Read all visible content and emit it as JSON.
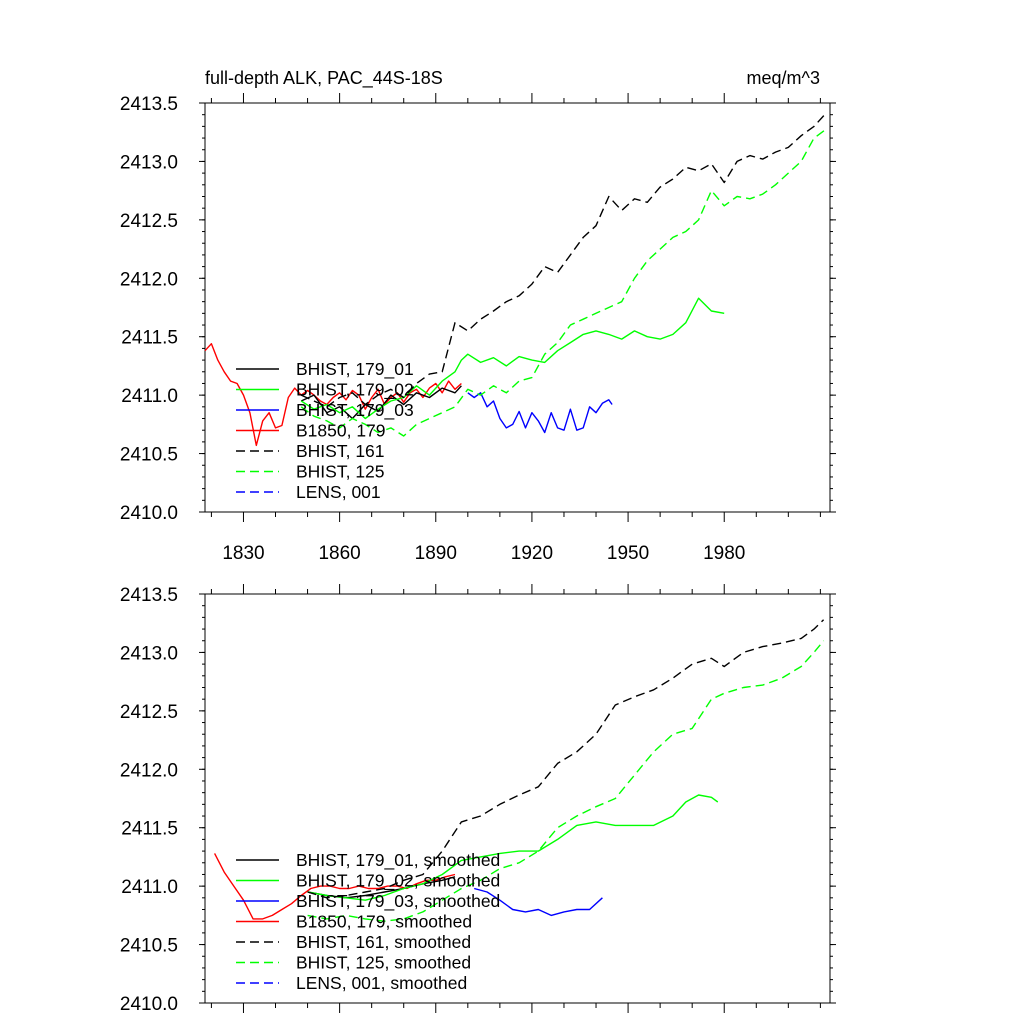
{
  "chart_data": [
    {
      "type": "line",
      "title": "full-depth ALK, PAC_44S-18S",
      "units": "meq/m^3",
      "xlim": [
        1818,
        2013
      ],
      "ylim": [
        2410.0,
        2413.5
      ],
      "xticks": [
        1830,
        1860,
        1890,
        1920,
        1950,
        1980
      ],
      "xtick_labels": [
        "1830",
        "1860",
        "1890",
        "1920",
        "1950",
        "1980"
      ],
      "yticks": [
        2410.0,
        2410.5,
        2411.0,
        2411.5,
        2412.0,
        2412.5,
        2413.0,
        2413.5
      ],
      "ytick_labels": [
        "2410.0",
        "2410.5",
        "2411.0",
        "2411.5",
        "2412.0",
        "2412.5",
        "2413.0",
        "2413.5"
      ],
      "legend_position": "bottom-left",
      "legend": [
        {
          "label": "BHIST, 179_01",
          "color": "#000000",
          "dash": "solid"
        },
        {
          "label": "BHIST, 179_02",
          "color": "#00ff00",
          "dash": "solid"
        },
        {
          "label": "BHIST, 179_03",
          "color": "#0000ff",
          "dash": "solid"
        },
        {
          "label": "B1850, 179",
          "color": "#ff0000",
          "dash": "solid"
        },
        {
          "label": "BHIST, 161",
          "color": "#000000",
          "dash": "dashed"
        },
        {
          "label": "BHIST, 125",
          "color": "#00ff00",
          "dash": "dashed"
        },
        {
          "label": "LENS, 001",
          "color": "#0000ff",
          "dash": "dashed"
        }
      ],
      "series": [
        {
          "name": "B1850, 179",
          "color": "#ff0000",
          "dash": "solid",
          "x": [
            1818,
            1820,
            1822,
            1824,
            1826,
            1828,
            1830,
            1832,
            1834,
            1836,
            1838,
            1840,
            1842,
            1844,
            1846,
            1848,
            1850,
            1852,
            1854,
            1856,
            1858,
            1860,
            1862,
            1864,
            1866,
            1868,
            1870,
            1872,
            1874,
            1876,
            1878,
            1880,
            1882,
            1884,
            1886,
            1888,
            1890,
            1892,
            1894,
            1896,
            1898
          ],
          "y": [
            2411.38,
            2411.44,
            2411.3,
            2411.2,
            2411.12,
            2411.1,
            2411.0,
            2410.85,
            2410.57,
            2410.78,
            2410.85,
            2410.72,
            2410.74,
            2410.98,
            2411.06,
            2411.0,
            2411.04,
            2411.0,
            2410.95,
            2410.92,
            2410.98,
            2411.02,
            2410.96,
            2411.04,
            2411.0,
            2410.88,
            2410.98,
            2411.05,
            2410.92,
            2410.98,
            2411.02,
            2410.94,
            2411.02,
            2411.05,
            2410.98,
            2411.06,
            2411.1,
            2411.02,
            2411.12,
            2411.05,
            2411.1
          ]
        },
        {
          "name": "BHIST, 179_01",
          "color": "#000000",
          "dash": "solid",
          "x": [
            1848,
            1852,
            1856,
            1860,
            1864,
            1868,
            1872,
            1876,
            1880,
            1884,
            1888,
            1892,
            1896,
            1898
          ],
          "y": [
            2410.95,
            2411.0,
            2410.85,
            2410.9,
            2410.8,
            2410.92,
            2410.86,
            2411.0,
            2410.92,
            2411.02,
            2410.98,
            2411.06,
            2411.02,
            2411.08
          ]
        },
        {
          "name": "BHIST, 179_02",
          "color": "#00ff00",
          "dash": "solid",
          "x": [
            1848,
            1852,
            1856,
            1860,
            1864,
            1868,
            1872,
            1876,
            1880,
            1884,
            1888,
            1892,
            1896,
            1898,
            1900,
            1904,
            1908,
            1912,
            1916,
            1920,
            1924,
            1928,
            1932,
            1936,
            1940,
            1944,
            1948,
            1952,
            1956,
            1960,
            1964,
            1968,
            1972,
            1976,
            1980
          ],
          "y": [
            2410.95,
            2410.88,
            2410.92,
            2410.85,
            2410.9,
            2410.8,
            2410.88,
            2410.95,
            2410.98,
            2411.08,
            2411.0,
            2411.12,
            2411.2,
            2411.3,
            2411.35,
            2411.28,
            2411.32,
            2411.25,
            2411.33,
            2411.3,
            2411.28,
            2411.38,
            2411.45,
            2411.52,
            2411.55,
            2411.52,
            2411.48,
            2411.55,
            2411.5,
            2411.48,
            2411.52,
            2411.62,
            2411.83,
            2411.72,
            2411.7
          ]
        },
        {
          "name": "BHIST, 179_03",
          "color": "#0000ff",
          "dash": "solid",
          "x": [
            1900,
            1902,
            1904,
            1906,
            1908,
            1910,
            1912,
            1914,
            1916,
            1918,
            1920,
            1922,
            1924,
            1926,
            1928,
            1930,
            1932,
            1934,
            1936,
            1938,
            1940,
            1942,
            1944,
            1945
          ],
          "y": [
            2411.02,
            2410.98,
            2411.02,
            2410.9,
            2410.95,
            2410.8,
            2410.72,
            2410.75,
            2410.86,
            2410.72,
            2410.85,
            2410.78,
            2410.68,
            2410.85,
            2410.72,
            2410.7,
            2410.88,
            2410.7,
            2410.72,
            2410.9,
            2410.85,
            2410.93,
            2410.96,
            2410.92
          ]
        },
        {
          "name": "BHIST, 161",
          "color": "#000000",
          "dash": "dashed",
          "x": [
            1848,
            1852,
            1856,
            1860,
            1864,
            1868,
            1872,
            1876,
            1880,
            1884,
            1888,
            1892,
            1896,
            1900,
            1904,
            1908,
            1912,
            1916,
            1920,
            1924,
            1928,
            1932,
            1936,
            1940,
            1944,
            1948,
            1952,
            1956,
            1960,
            1964,
            1968,
            1972,
            1976,
            1980,
            1984,
            1988,
            1992,
            1996,
            2000,
            2004,
            2008,
            2012
          ],
          "y": [
            2411.0,
            2410.95,
            2410.9,
            2410.98,
            2411.02,
            2410.92,
            2411.0,
            2411.05,
            2410.98,
            2411.1,
            2411.18,
            2411.2,
            2411.62,
            2411.55,
            2411.65,
            2411.72,
            2411.8,
            2411.85,
            2411.95,
            2412.1,
            2412.05,
            2412.2,
            2412.35,
            2412.45,
            2412.7,
            2412.58,
            2412.68,
            2412.65,
            2412.78,
            2412.85,
            2412.95,
            2412.92,
            2412.98,
            2412.82,
            2413.0,
            2413.05,
            2413.02,
            2413.08,
            2413.12,
            2413.22,
            2413.3,
            2413.42
          ]
        },
        {
          "name": "BHIST, 125",
          "color": "#00ff00",
          "dash": "dashed",
          "x": [
            1848,
            1852,
            1856,
            1860,
            1864,
            1868,
            1872,
            1876,
            1880,
            1884,
            1888,
            1892,
            1896,
            1900,
            1904,
            1908,
            1912,
            1916,
            1920,
            1924,
            1928,
            1932,
            1936,
            1940,
            1944,
            1948,
            1952,
            1956,
            1960,
            1964,
            1968,
            1972,
            1976,
            1980,
            1984,
            1988,
            1992,
            1996,
            2000,
            2004,
            2008,
            2012
          ],
          "y": [
            2410.9,
            2410.82,
            2410.78,
            2410.72,
            2410.8,
            2410.75,
            2410.68,
            2410.72,
            2410.65,
            2410.75,
            2410.8,
            2410.85,
            2410.9,
            2411.05,
            2411.0,
            2411.08,
            2411.02,
            2411.12,
            2411.15,
            2411.35,
            2411.45,
            2411.6,
            2411.65,
            2411.7,
            2411.75,
            2411.8,
            2412.0,
            2412.15,
            2412.25,
            2412.35,
            2412.4,
            2412.5,
            2412.75,
            2412.62,
            2412.7,
            2412.68,
            2412.72,
            2412.8,
            2412.9,
            2413.0,
            2413.2,
            2413.28
          ]
        }
      ]
    },
    {
      "type": "line",
      "title": "",
      "xlim": [
        1818,
        2013
      ],
      "ylim": [
        2410.0,
        2413.5
      ],
      "xticks": [
        1830,
        1860,
        1890,
        1920,
        1950,
        1980
      ],
      "yticks": [
        2410.0,
        2410.5,
        2411.0,
        2411.5,
        2412.0,
        2412.5,
        2413.0,
        2413.5
      ],
      "ytick_labels": [
        "2410.0",
        "2410.5",
        "2411.0",
        "2411.5",
        "2412.0",
        "2412.5",
        "2413.0",
        "2413.5"
      ],
      "legend_position": "bottom-left",
      "legend": [
        {
          "label": "BHIST, 179_01, smoothed",
          "color": "#000000",
          "dash": "solid"
        },
        {
          "label": "BHIST, 179_02, smoothed",
          "color": "#00ff00",
          "dash": "solid"
        },
        {
          "label": "BHIST, 179_03, smoothed",
          "color": "#0000ff",
          "dash": "solid"
        },
        {
          "label": "B1850, 179, smoothed",
          "color": "#ff0000",
          "dash": "solid"
        },
        {
          "label": "BHIST, 161, smoothed",
          "color": "#000000",
          "dash": "dashed"
        },
        {
          "label": "BHIST, 125, smoothed",
          "color": "#00ff00",
          "dash": "dashed"
        },
        {
          "label": "LENS, 001, smoothed",
          "color": "#0000ff",
          "dash": "dashed"
        }
      ],
      "series": [
        {
          "name": "B1850, 179, smoothed",
          "color": "#ff0000",
          "dash": "solid",
          "x": [
            1821,
            1824,
            1827,
            1830,
            1833,
            1836,
            1839,
            1842,
            1845,
            1848,
            1851,
            1854,
            1857,
            1860,
            1863,
            1866,
            1869,
            1872,
            1875,
            1878,
            1881,
            1884,
            1887,
            1890,
            1893,
            1896
          ],
          "y": [
            2411.28,
            2411.12,
            2411.0,
            2410.88,
            2410.72,
            2410.72,
            2410.75,
            2410.8,
            2410.85,
            2410.92,
            2410.98,
            2411.0,
            2411.0,
            2410.98,
            2410.98,
            2411.0,
            2410.98,
            2410.98,
            2411.0,
            2411.0,
            2410.98,
            2411.02,
            2411.05,
            2411.05,
            2411.08,
            2411.1
          ]
        },
        {
          "name": "BHIST, 179_01, smoothed",
          "color": "#000000",
          "dash": "solid",
          "x": [
            1850,
            1856,
            1862,
            1868,
            1874,
            1880,
            1886,
            1892,
            1896
          ],
          "y": [
            2410.95,
            2410.92,
            2410.9,
            2410.92,
            2410.95,
            2410.98,
            2411.02,
            2411.05,
            2411.08
          ]
        },
        {
          "name": "BHIST, 179_02, smoothed",
          "color": "#00ff00",
          "dash": "solid",
          "x": [
            1850,
            1856,
            1862,
            1868,
            1874,
            1880,
            1886,
            1892,
            1898,
            1904,
            1910,
            1916,
            1922,
            1928,
            1934,
            1940,
            1946,
            1952,
            1958,
            1964,
            1968,
            1972,
            1976,
            1978
          ],
          "y": [
            2410.95,
            2410.92,
            2410.9,
            2410.88,
            2410.92,
            2410.98,
            2411.02,
            2411.1,
            2411.22,
            2411.25,
            2411.28,
            2411.3,
            2411.3,
            2411.4,
            2411.52,
            2411.55,
            2411.52,
            2411.52,
            2411.52,
            2411.6,
            2411.72,
            2411.78,
            2411.76,
            2411.72
          ]
        },
        {
          "name": "BHIST, 179_03, smoothed",
          "color": "#0000ff",
          "dash": "solid",
          "x": [
            1902,
            1906,
            1910,
            1914,
            1918,
            1922,
            1926,
            1930,
            1934,
            1938,
            1942
          ],
          "y": [
            2410.98,
            2410.95,
            2410.88,
            2410.8,
            2410.78,
            2410.8,
            2410.75,
            2410.78,
            2410.8,
            2410.8,
            2410.9
          ]
        },
        {
          "name": "BHIST, 161, smoothed",
          "color": "#000000",
          "dash": "dashed",
          "x": [
            1850,
            1856,
            1862,
            1868,
            1874,
            1880,
            1886,
            1892,
            1898,
            1904,
            1910,
            1916,
            1922,
            1928,
            1934,
            1940,
            1946,
            1952,
            1958,
            1964,
            1970,
            1976,
            1980,
            1986,
            1992,
            1998,
            2004,
            2008,
            2011
          ],
          "y": [
            2410.95,
            2410.9,
            2410.92,
            2410.95,
            2410.98,
            2411.05,
            2411.1,
            2411.3,
            2411.55,
            2411.6,
            2411.7,
            2411.78,
            2411.85,
            2412.05,
            2412.15,
            2412.3,
            2412.55,
            2412.62,
            2412.68,
            2412.78,
            2412.9,
            2412.95,
            2412.88,
            2413.0,
            2413.05,
            2413.08,
            2413.12,
            2413.2,
            2413.28
          ]
        },
        {
          "name": "BHIST, 125, smoothed",
          "color": "#00ff00",
          "dash": "dashed",
          "x": [
            1850,
            1856,
            1862,
            1868,
            1874,
            1880,
            1886,
            1892,
            1898,
            1904,
            1910,
            1916,
            1922,
            1928,
            1934,
            1940,
            1946,
            1952,
            1958,
            1964,
            1970,
            1976,
            1980,
            1986,
            1992,
            1998,
            2004,
            2008,
            2011
          ],
          "y": [
            2410.75,
            2410.72,
            2410.75,
            2410.72,
            2410.7,
            2410.72,
            2410.78,
            2410.88,
            2410.98,
            2411.05,
            2411.15,
            2411.2,
            2411.3,
            2411.5,
            2411.6,
            2411.68,
            2411.75,
            2411.95,
            2412.15,
            2412.3,
            2412.35,
            2412.6,
            2412.65,
            2412.7,
            2412.72,
            2412.78,
            2412.88,
            2413.0,
            2413.1
          ]
        }
      ]
    }
  ]
}
